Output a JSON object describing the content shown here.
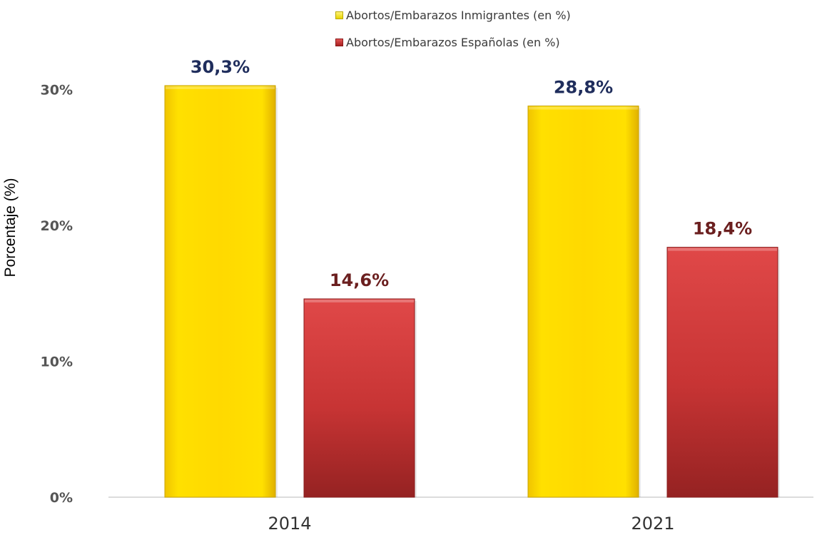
{
  "chart_data": {
    "type": "bar",
    "categories": [
      "2014",
      "2021"
    ],
    "series": [
      {
        "name": "Abortos/Embarazos Inmigrantes (en %)",
        "values": [
          30.3,
          28.8
        ],
        "labels": [
          "30,3%",
          "28,8%"
        ],
        "color": "#ffd700",
        "label_color": "#1f2d5c"
      },
      {
        "name": "Abortos/Embarazos Españolas (en %)",
        "values": [
          14.6,
          18.4
        ],
        "labels": [
          "14,6%",
          "18,4%"
        ],
        "color": "#c9302e",
        "label_color": "#6b1f1f"
      }
    ],
    "ylabel": "Porcentaje (%)",
    "yticks": [
      0,
      10,
      20,
      30
    ],
    "ytick_labels": [
      "0%",
      "10%",
      "20%",
      "30%"
    ],
    "ylim": [
      0,
      30.3
    ],
    "grid": false,
    "legend_position": "top-center"
  }
}
